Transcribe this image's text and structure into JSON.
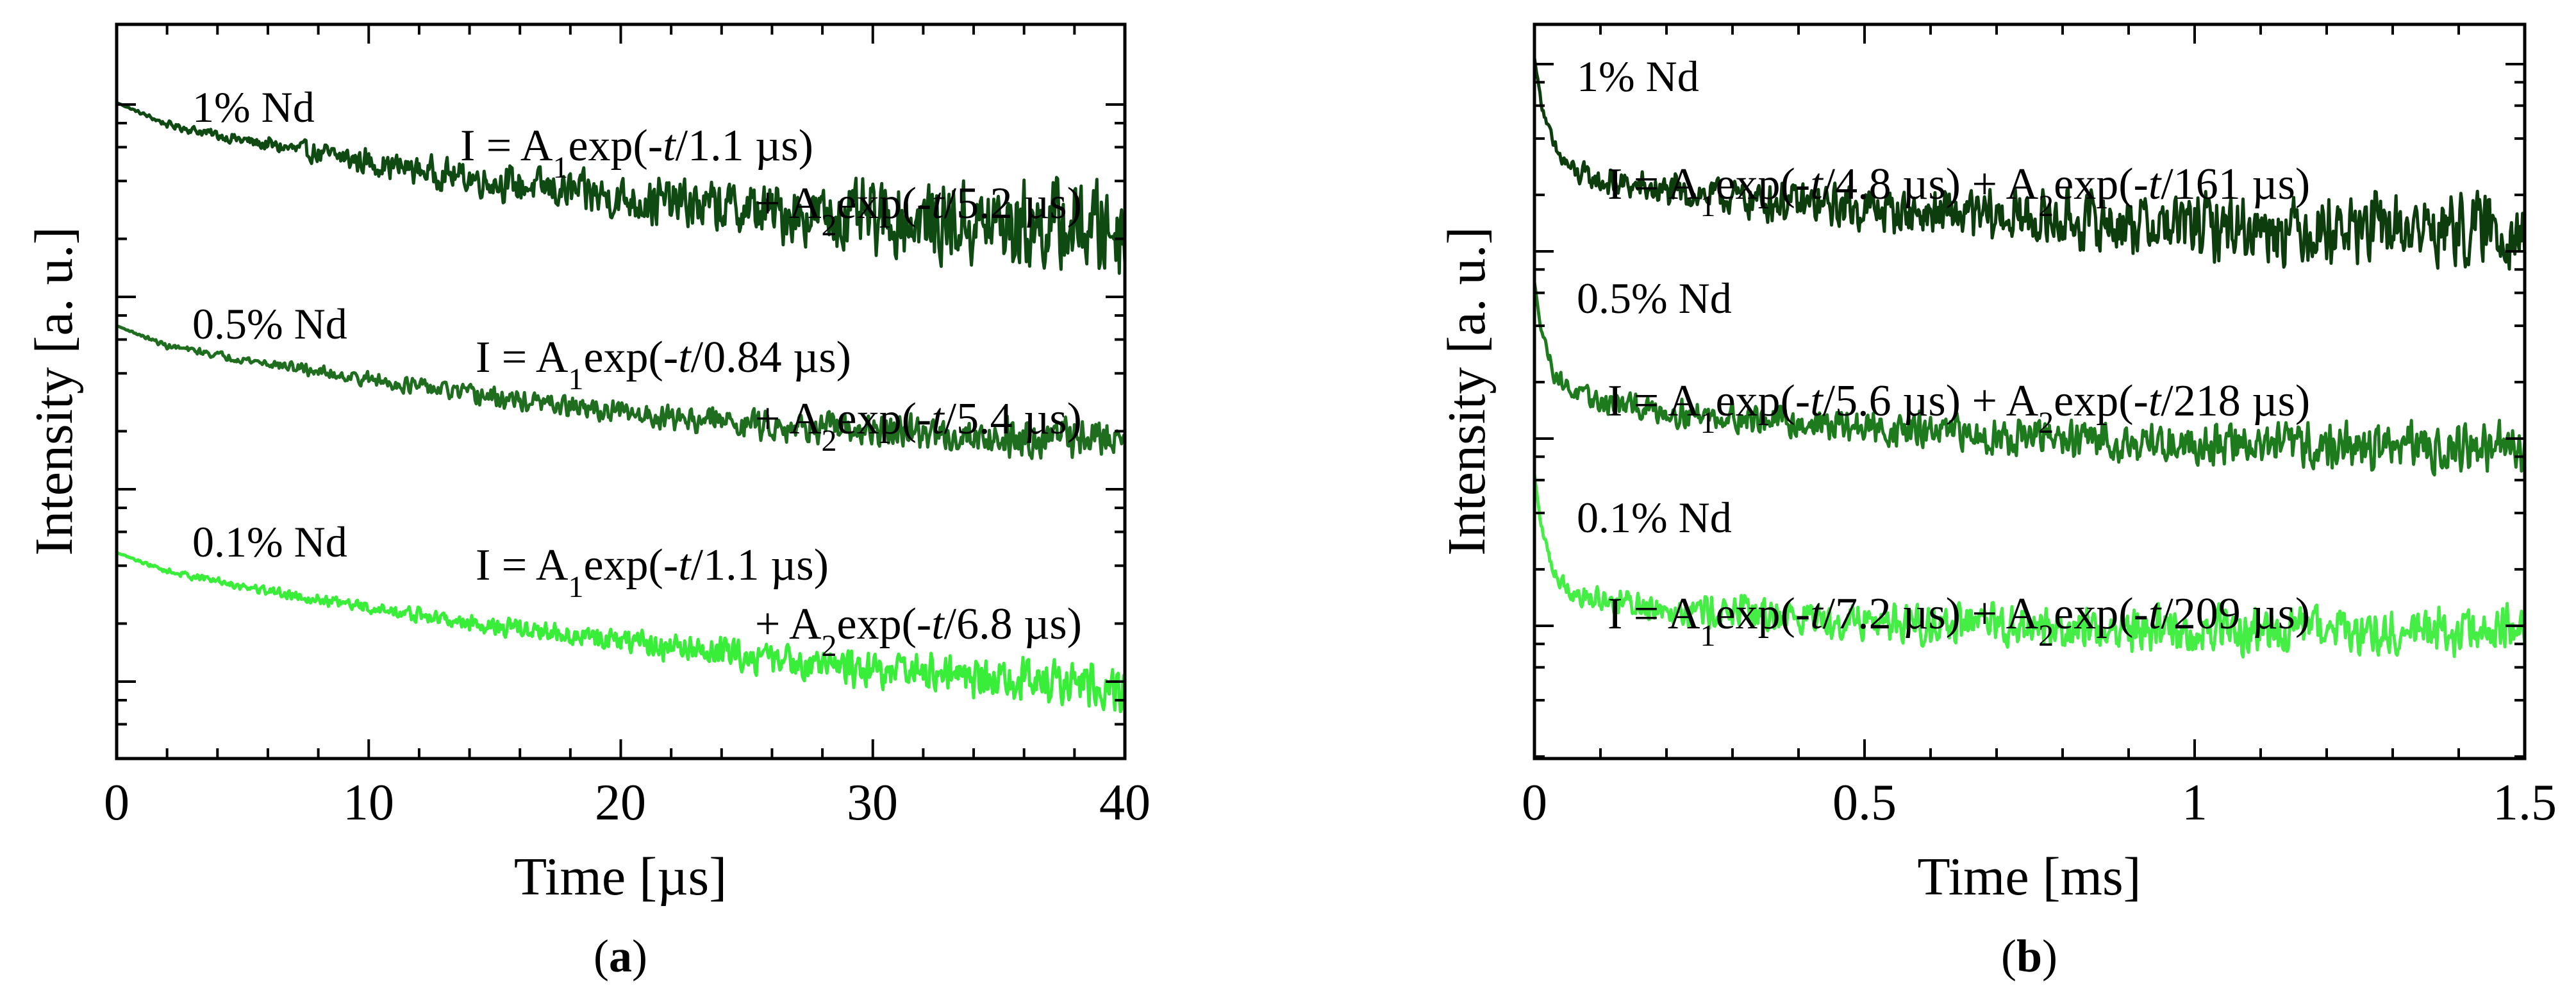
{
  "chart_data": [
    {
      "type": "line",
      "panel_label": "a",
      "xlabel": "Time [µs]",
      "ylabel": "Intensity [a. u.]",
      "xlim": [
        0,
        40
      ],
      "xticks": [
        "0",
        "10",
        "20",
        "30",
        "40"
      ],
      "yscale": "log",
      "series": [
        {
          "name": "1% Nd",
          "color": "#0f4a12",
          "fit": [
            "I = A",
            "1",
            "exp(-",
            "t",
            "/1.1 µs)",
            "+ A",
            "2",
            "exp(-",
            "t",
            "/5.2 µs)"
          ],
          "x": [
            0,
            2,
            5,
            10,
            15,
            20,
            25,
            30,
            35,
            40
          ],
          "y": [
            1.0,
            0.89,
            0.81,
            0.7,
            0.6,
            0.52,
            0.46,
            0.41,
            0.38,
            0.37
          ],
          "noise": [
            0.0,
            0.02,
            0.04,
            0.08,
            0.1,
            0.14,
            0.17,
            0.22,
            0.26,
            0.3
          ]
        },
        {
          "name": "0.5% Nd",
          "color": "#1f6e1f",
          "fit": [
            "I = A",
            "1",
            "exp(-",
            "t",
            "/0.84 µs)",
            "+ A",
            "2",
            "exp(-",
            "t",
            "/5.4 µs)"
          ],
          "x": [
            0,
            2,
            5,
            10,
            15,
            20,
            25,
            30,
            35,
            40
          ],
          "y": [
            1.0,
            0.88,
            0.8,
            0.68,
            0.57,
            0.48,
            0.42,
            0.37,
            0.34,
            0.33
          ],
          "noise": [
            0.0,
            0.02,
            0.03,
            0.05,
            0.07,
            0.08,
            0.1,
            0.11,
            0.13,
            0.15
          ]
        },
        {
          "name": "0.1% Nd",
          "color": "#39ee39",
          "fit": [
            "I = A",
            "1",
            "exp(-",
            "t",
            "/1.1 µs)",
            "+ A",
            "2",
            "exp(-",
            "t",
            "/6.8 µs)"
          ],
          "x": [
            0,
            2,
            5,
            10,
            15,
            20,
            25,
            30,
            35,
            40
          ],
          "y": [
            1.0,
            0.9,
            0.82,
            0.7,
            0.6,
            0.52,
            0.44,
            0.37,
            0.31,
            0.27
          ],
          "noise": [
            0.0,
            0.02,
            0.03,
            0.04,
            0.06,
            0.08,
            0.1,
            0.12,
            0.14,
            0.16
          ]
        }
      ]
    },
    {
      "type": "line",
      "panel_label": "b",
      "xlabel": "Time [ms]",
      "ylabel": "Intensity [a. u.]",
      "xlim": [
        0,
        1.5
      ],
      "xticks": [
        "0",
        "0.5",
        "1",
        "1.5"
      ],
      "yscale": "log",
      "series": [
        {
          "name": "1% Nd",
          "color": "#0d3d0d",
          "fit": [
            "I = A",
            "1",
            "exp(-",
            "t",
            "/4.8 µs) + A",
            "2",
            "exp(-",
            "t",
            "/161 µs)"
          ],
          "x": [
            0,
            0.01,
            0.03,
            0.06,
            0.1,
            0.2,
            0.4,
            0.6,
            0.8,
            1.0,
            1.2,
            1.5
          ],
          "y": [
            1.0,
            0.82,
            0.62,
            0.53,
            0.49,
            0.45,
            0.4,
            0.36,
            0.33,
            0.31,
            0.3,
            0.29
          ],
          "noise": [
            0.0,
            0.02,
            0.05,
            0.06,
            0.07,
            0.08,
            0.1,
            0.12,
            0.14,
            0.16,
            0.17,
            0.18
          ]
        },
        {
          "name": "0.5% Nd",
          "color": "#1d7a1d",
          "fit": [
            "I = A",
            "1",
            "exp(-",
            "t",
            "/5.6 µs) + A",
            "2",
            "exp(-",
            "t",
            "/218 µs)"
          ],
          "x": [
            0,
            0.01,
            0.03,
            0.06,
            0.1,
            0.2,
            0.4,
            0.6,
            0.8,
            1.0,
            1.2,
            1.5
          ],
          "y": [
            1.0,
            0.8,
            0.6,
            0.52,
            0.48,
            0.44,
            0.39,
            0.35,
            0.32,
            0.3,
            0.29,
            0.28
          ],
          "noise": [
            0.0,
            0.02,
            0.04,
            0.05,
            0.06,
            0.07,
            0.08,
            0.09,
            0.1,
            0.11,
            0.12,
            0.13
          ]
        },
        {
          "name": "0.1% Nd",
          "color": "#44ee44",
          "fit": [
            "I = A",
            "1",
            "exp(-",
            "t",
            "/7.2 µs) + A",
            "2",
            "exp(-",
            "t",
            "/209 µs)"
          ],
          "x": [
            0,
            0.01,
            0.03,
            0.06,
            0.1,
            0.2,
            0.4,
            0.6,
            0.8,
            1.0,
            1.2,
            1.5
          ],
          "y": [
            1.0,
            0.78,
            0.58,
            0.5,
            0.47,
            0.44,
            0.4,
            0.37,
            0.35,
            0.34,
            0.34,
            0.33
          ],
          "noise": [
            0.0,
            0.02,
            0.04,
            0.06,
            0.07,
            0.08,
            0.09,
            0.1,
            0.11,
            0.12,
            0.12,
            0.13
          ]
        }
      ]
    }
  ]
}
